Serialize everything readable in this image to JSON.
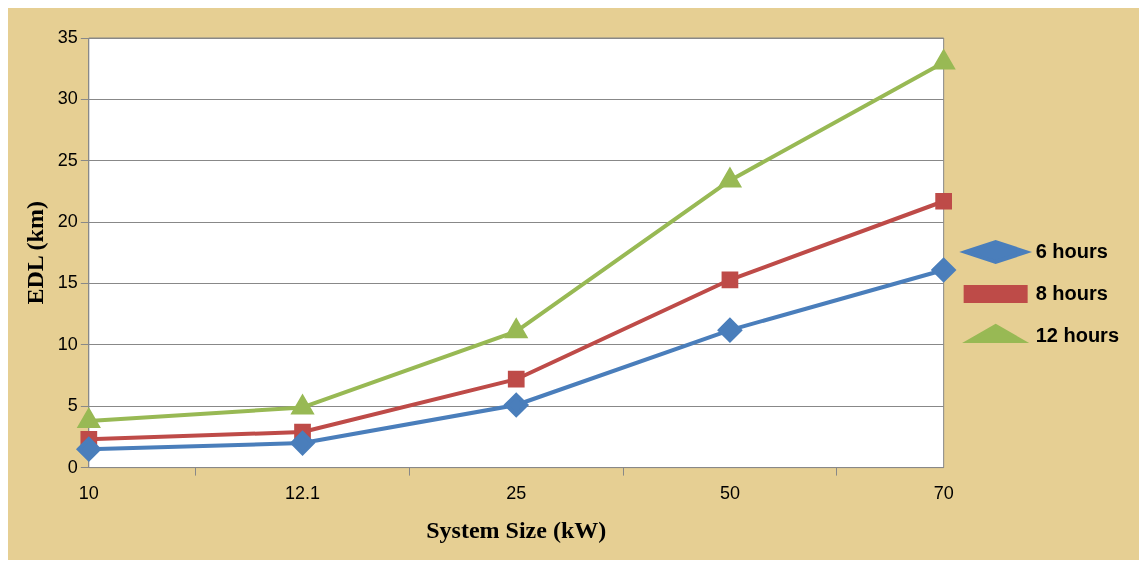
{
  "chart_data": {
    "type": "line",
    "xlabel": "System Size (kW)",
    "ylabel": "EDL (km)",
    "categories": [
      "10",
      "12.1",
      "25",
      "50",
      "70"
    ],
    "series": [
      {
        "name": "6 hours",
        "color": "#4a7ebb",
        "marker": "diamond",
        "values": [
          1.5,
          2.0,
          5.1,
          11.2,
          16.1
        ]
      },
      {
        "name": "8 hours",
        "color": "#be4b48",
        "marker": "square",
        "values": [
          2.3,
          2.9,
          7.2,
          15.3,
          21.7
        ]
      },
      {
        "name": "12 hours",
        "color": "#98b954",
        "marker": "triangle",
        "values": [
          3.8,
          4.9,
          11.1,
          23.4,
          33.0
        ]
      }
    ],
    "ylim": [
      0,
      35
    ],
    "yticks": [
      0,
      5,
      10,
      15,
      20,
      25,
      30,
      35
    ],
    "grid": "y",
    "legend": "right",
    "line_style": "solid"
  }
}
